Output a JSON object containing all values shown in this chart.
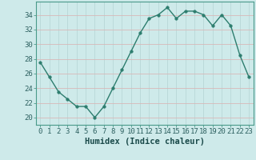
{
  "x": [
    0,
    1,
    2,
    3,
    4,
    5,
    6,
    7,
    8,
    9,
    10,
    11,
    12,
    13,
    14,
    15,
    16,
    17,
    18,
    19,
    20,
    21,
    22,
    23
  ],
  "y": [
    27.5,
    25.5,
    23.5,
    22.5,
    21.5,
    21.5,
    20.0,
    21.5,
    24.0,
    26.5,
    29.0,
    31.5,
    33.5,
    34.0,
    35.0,
    33.5,
    34.5,
    34.5,
    34.0,
    32.5,
    34.0,
    32.5,
    28.5,
    25.5
  ],
  "line_color": "#2d7d6e",
  "marker": "o",
  "marker_size": 2.5,
  "bg_color": "#ceeaea",
  "grid_color": "#b8d8d8",
  "xlabel": "Humidex (Indice chaleur)",
  "ylabel_ticks": [
    20,
    22,
    24,
    26,
    28,
    30,
    32,
    34
  ],
  "xlim": [
    -0.5,
    23.5
  ],
  "ylim": [
    19.0,
    35.8
  ],
  "xlabel_fontsize": 7.5,
  "tick_fontsize": 6.5,
  "line_width": 1.0,
  "spine_color": "#4a9a8a"
}
